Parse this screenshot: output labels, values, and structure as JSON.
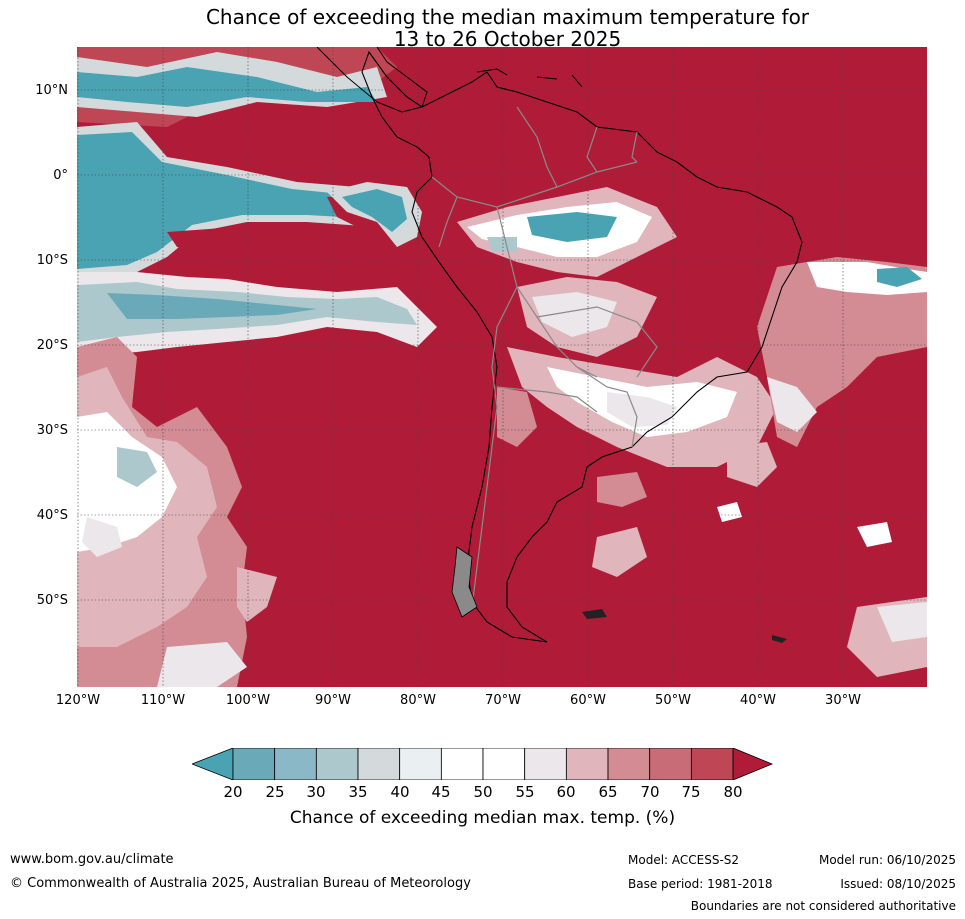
{
  "title": {
    "line1": "Chance of exceeding the median maximum temperature for",
    "line2": "13 to 26 October 2025"
  },
  "lat_labels": [
    "10°N",
    "0°",
    "10°S",
    "20°S",
    "30°S",
    "40°S",
    "50°S"
  ],
  "lon_labels": [
    "120°W",
    "110°W",
    "100°W",
    "90°W",
    "80°W",
    "70°W",
    "60°W",
    "50°W",
    "40°W",
    "30°W"
  ],
  "colorbar": {
    "ticks": [
      "20",
      "25",
      "30",
      "35",
      "40",
      "45",
      "50",
      "55",
      "60",
      "65",
      "70",
      "75",
      "80"
    ],
    "colors": [
      "#4aa3b3",
      "#6aaab8",
      "#8ab8c6",
      "#acc8cc",
      "#d4dadc",
      "#eaf0f2",
      "#ffffff",
      "#ffffff",
      "#ebe7ea",
      "#e0b5bc",
      "#d38b94",
      "#c86c77",
      "#bf4755",
      "#b01c38"
    ],
    "label": "Chance of exceeding median max. temp. (%)"
  },
  "map": {
    "ocean_base_color": "#b01c38",
    "land_outline_color": "#000000",
    "border_color": "#8a8a8a",
    "grid": true
  },
  "footer": {
    "website": "www.bom.gov.au/climate",
    "copyright": "© Commonwealth of Australia 2025, Australian Bureau of Meteorology",
    "model": "Model: ACCESS-S2",
    "base_period": "Base period: 1981-2018",
    "model_run": "Model run: 06/10/2025",
    "issued": "Issued: 08/10/2025",
    "disclaimer": "Boundaries are not considered authoritative"
  }
}
